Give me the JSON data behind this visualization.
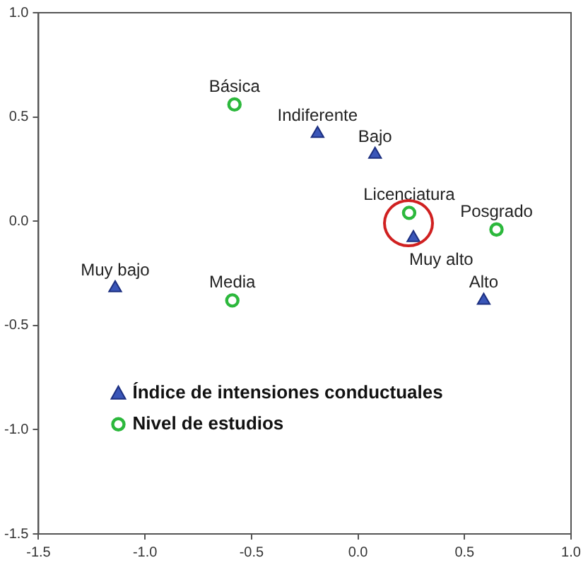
{
  "chart_data": {
    "type": "scatter",
    "xlim": [
      -1.5,
      1.0
    ],
    "ylim": [
      -1.5,
      1.0
    ],
    "xticks": [
      {
        "value": -1.5,
        "label": "-1.5"
      },
      {
        "value": -1.0,
        "label": "-1.0"
      },
      {
        "value": -0.5,
        "label": "-0.5"
      },
      {
        "value": 0,
        "label": "0.0"
      },
      {
        "value": 0.5,
        "label": "0.5"
      },
      {
        "value": 1.0,
        "label": "1.0"
      }
    ],
    "yticks": [
      {
        "value": -1.5,
        "label": "-1.5"
      },
      {
        "value": -1.0,
        "label": "-1.0"
      },
      {
        "value": -0.5,
        "label": "-0.5"
      },
      {
        "value": 0,
        "label": "0.0"
      },
      {
        "value": 0.5,
        "label": "0.5"
      },
      {
        "value": 1.0,
        "label": "1.0"
      }
    ],
    "grid": false,
    "legend": "bottom left",
    "series": [
      {
        "name": "Índice de intensiones conductuales",
        "color": "#3a56b8",
        "marker": "triangle",
        "x": [
          -0.19,
          0.08,
          0.26,
          -1.14,
          0.59
        ],
        "values": [
          0.42,
          0.32,
          -0.08,
          -0.32,
          -0.38
        ]
      },
      {
        "name": "Nivel de estudios",
        "color": "#2cb83c",
        "marker": "circle",
        "x": [
          -0.58,
          0.24,
          0.65,
          -0.59
        ],
        "values": [
          0.56,
          0.04,
          -0.04,
          -0.38
        ]
      }
    ],
    "annotations": [
      {
        "text": "Indiferente",
        "x": -0.19,
        "y": 0.42
      },
      {
        "text": "Bajo",
        "x": 0.08,
        "y": 0.32
      },
      {
        "text": "Muy alto",
        "x": 0.26,
        "y": -0.08
      },
      {
        "text": "Muy bajo",
        "x": -1.14,
        "y": -0.32
      },
      {
        "text": "Alto",
        "x": 0.59,
        "y": -0.38
      },
      {
        "text": "Básica",
        "x": -0.58,
        "y": 0.56
      },
      {
        "text": "Licenciatura",
        "x": 0.24,
        "y": 0.04
      },
      {
        "text": "Posgrado",
        "x": 0.65,
        "y": -0.04
      },
      {
        "text": "Media",
        "x": -0.59,
        "y": -0.38
      }
    ]
  }
}
